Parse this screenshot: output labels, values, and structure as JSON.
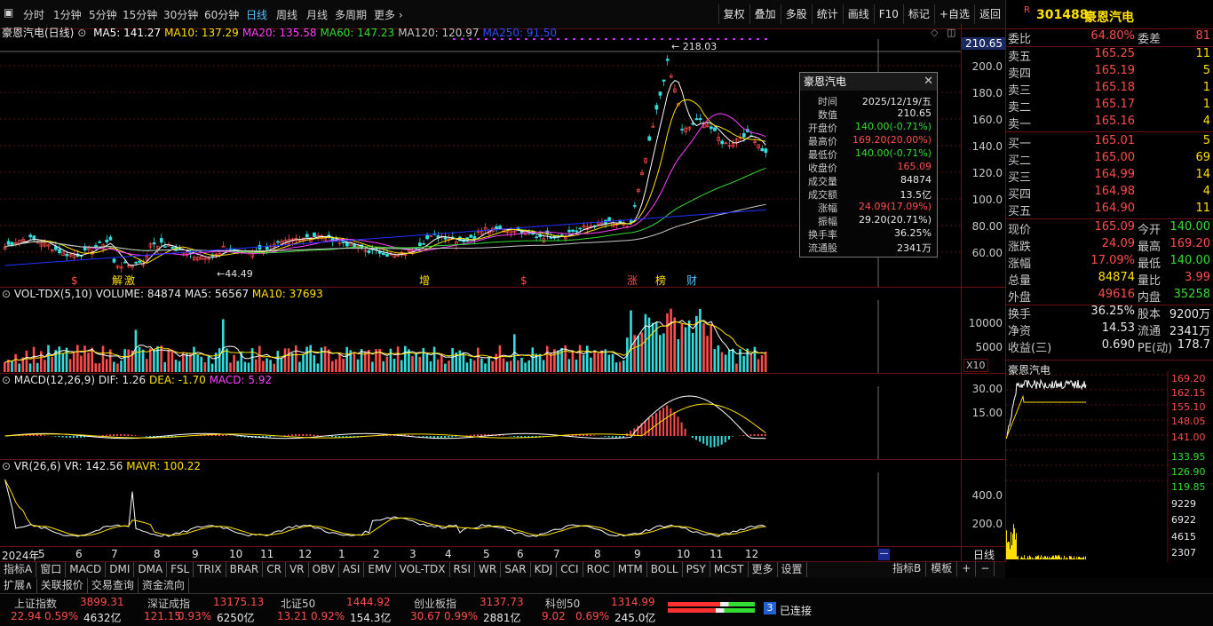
{
  "toolbar": {
    "periods": [
      "分时",
      "1分钟",
      "5分钟",
      "15分钟",
      "30分钟",
      "60分钟",
      "日线",
      "周线",
      "月线",
      "多周期",
      "更多"
    ],
    "active_period": "日线",
    "right_buttons": [
      "复权",
      "叠加",
      "多股",
      "统计",
      "画线",
      "F10",
      "标记",
      "+自选",
      "返回"
    ]
  },
  "main_chart": {
    "stock_title": "豪恩汽电(日线)",
    "ma": [
      {
        "label": "MA5: 141.27",
        "color": "#ffffff"
      },
      {
        "label": "MA10: 137.29",
        "color": "#ffe000"
      },
      {
        "label": "MA20: 135.58",
        "color": "#ff40ff"
      },
      {
        "label": "MA60: 147.23",
        "color": "#33dd33"
      },
      {
        "label": "MA120: 120.97",
        "color": "#c8c8c8"
      },
      {
        "label": "MA250: 91.50",
        "color": "#3050ff"
      }
    ],
    "high_label": "218.03",
    "low_label": "44.49",
    "axis": [
      "200.0",
      "180.0",
      "160.0",
      "140.0",
      "120.0",
      "100.0",
      "80.00",
      "60.00"
    ],
    "crosshair_price": "210.65",
    "event_markers": [
      {
        "text": "$",
        "color": "#ff4c4c"
      },
      {
        "text": "解",
        "color": "#ffe000"
      },
      {
        "text": "激",
        "color": "#ffe000"
      },
      {
        "text": "增",
        "color": "#ffe000"
      },
      {
        "text": "$",
        "color": "#ff4c4c"
      },
      {
        "text": "涨",
        "color": "#ff4c4c"
      },
      {
        "text": "榜",
        "color": "#ffe000"
      },
      {
        "text": "财",
        "color": "#4fc3ff"
      }
    ]
  },
  "vol_panel": {
    "title": "VOL-TDX(5,10)",
    "labels": [
      "VOLUME: 84874",
      "MA5: 56567",
      "MA10: 37693"
    ],
    "axis": [
      "10000",
      "5000"
    ],
    "unit": "X10"
  },
  "macd_panel": {
    "title": "MACD(12,26,9)",
    "labels": [
      "DIF: 1.26",
      "DEA: -1.70",
      "MACD: 5.92"
    ],
    "axis": [
      "30.00",
      "15.00"
    ]
  },
  "vr_panel": {
    "title": "VR(26,6)",
    "labels": [
      "VR: 142.56",
      "MAVR: 100.22"
    ],
    "axis": [
      "400.0",
      "200.0"
    ],
    "period_label": "日线"
  },
  "x_axis": {
    "labels": [
      "2024年",
      "5",
      "6",
      "7",
      "8",
      "9",
      "10",
      "11",
      "12",
      "1",
      "2",
      "3",
      "4",
      "5",
      "6",
      "7",
      "8",
      "9",
      "10",
      "11",
      "12"
    ]
  },
  "popup": {
    "title": "豪恩汽电",
    "rows": [
      {
        "k": "时间",
        "v": "2025/12/19/五",
        "c": "#e8e8e8"
      },
      {
        "k": "数值",
        "v": "210.65",
        "c": "#e8e8e8"
      },
      {
        "k": "开盘价",
        "v": "140.00(-0.71%)",
        "c": "#33dd33"
      },
      {
        "k": "最高价",
        "v": "169.20(20.00%)",
        "c": "#ff4c4c"
      },
      {
        "k": "最低价",
        "v": "140.00(-0.71%)",
        "c": "#33dd33"
      },
      {
        "k": "收盘价",
        "v": "165.09",
        "c": "#ff4c4c"
      },
      {
        "k": "成交量",
        "v": "84874",
        "c": "#e8e8e8"
      },
      {
        "k": "成交额",
        "v": "13.5亿",
        "c": "#e8e8e8"
      },
      {
        "k": "涨幅",
        "v": "24.09(17.09%)",
        "c": "#ff4c4c"
      },
      {
        "k": "振幅",
        "v": "29.20(20.71%)",
        "c": "#e8e8e8"
      },
      {
        "k": "换手率",
        "v": "36.25%",
        "c": "#e8e8e8"
      },
      {
        "k": "流通股",
        "v": "2341万",
        "c": "#e8e8e8"
      }
    ]
  },
  "quote": {
    "badge": "R",
    "code": "301488",
    "name": "豪恩汽电",
    "webi_label": "委比",
    "webi": "64.80%",
    "wecha_label": "委差",
    "wecha": "81",
    "asks": [
      {
        "label": "卖五",
        "price": "165.25",
        "vol": "11"
      },
      {
        "label": "卖四",
        "price": "165.19",
        "vol": "5"
      },
      {
        "label": "卖三",
        "price": "165.18",
        "vol": "1"
      },
      {
        "label": "卖二",
        "price": "165.17",
        "vol": "1"
      },
      {
        "label": "卖一",
        "price": "165.16",
        "vol": "4"
      }
    ],
    "bids": [
      {
        "label": "买一",
        "price": "165.01",
        "vol": "5"
      },
      {
        "label": "买二",
        "price": "165.00",
        "vol": "69"
      },
      {
        "label": "买三",
        "price": "164.99",
        "vol": "14"
      },
      {
        "label": "买四",
        "price": "164.98",
        "vol": "4"
      },
      {
        "label": "买五",
        "price": "164.90",
        "vol": "11"
      }
    ],
    "stats": [
      {
        "l": "现价",
        "v": "165.09",
        "vc": "#ff4c4c",
        "l2": "今开",
        "v2": "140.00",
        "v2c": "#33dd33"
      },
      {
        "l": "涨跌",
        "v": "24.09",
        "vc": "#ff4c4c",
        "l2": "最高",
        "v2": "169.20",
        "v2c": "#ff4c4c"
      },
      {
        "l": "涨幅",
        "v": "17.09%",
        "vc": "#ff4c4c",
        "l2": "最低",
        "v2": "140.00",
        "v2c": "#33dd33"
      },
      {
        "l": "总量",
        "v": "84874",
        "vc": "#ffe000",
        "l2": "量比",
        "v2": "3.99",
        "v2c": "#ff4c4c"
      },
      {
        "l": "外盘",
        "v": "49616",
        "vc": "#ff4c4c",
        "l2": "内盘",
        "v2": "35258",
        "v2c": "#33dd33"
      },
      {
        "l": "换手",
        "v": "36.25%",
        "vc": "#e8e8e8",
        "l2": "股本",
        "v2": "9200万",
        "v2c": "#e8e8e8"
      },
      {
        "l": "净资",
        "v": "14.53",
        "vc": "#e8e8e8",
        "l2": "流通",
        "v2": "2341万",
        "v2c": "#e8e8e8"
      },
      {
        "l": "收益(三)",
        "v": "0.690",
        "vc": "#e8e8e8",
        "l2": "PE(动)",
        "v2": "178.7",
        "v2c": "#e8e8e8"
      }
    ]
  },
  "mini_chart": {
    "title": "豪恩汽电",
    "axis_red": [
      "169.20",
      "162.15",
      "155.10",
      "148.05",
      "141.00"
    ],
    "axis_green": [
      "133.95",
      "126.90",
      "119.85"
    ],
    "vol_axis": [
      "9229",
      "6922",
      "4615",
      "2307"
    ]
  },
  "indicator_tabs": [
    "指标A",
    "窗口",
    "MACD",
    "DMI",
    "DMA",
    "FSL",
    "TRIX",
    "BRAR",
    "CR",
    "VR",
    "OBV",
    "ASI",
    "EMV",
    "VOL-TDX",
    "RSI",
    "WR",
    "SAR",
    "KDJ",
    "CCI",
    "ROC",
    "MTM",
    "BOLL",
    "PSY",
    "MCST",
    "更多",
    "设置"
  ],
  "indicator_right": [
    "指标B",
    "模板",
    "+",
    "−"
  ],
  "sub_tabs": [
    "扩展∧",
    "关联报价",
    "交易查询",
    "资金流向"
  ],
  "indices": [
    {
      "name": "上证指数",
      "val": "3899.31",
      "chg": "22.94",
      "pct": "0.59%",
      "amt": "4632亿"
    },
    {
      "name": "深证成指",
      "val": "13175.13",
      "chg": "121.15",
      "pct": "0.93%",
      "amt": "6250亿"
    },
    {
      "name": "北证50",
      "val": "1444.92",
      "chg": "13.21",
      "pct": "0.92%",
      "amt": "154.3亿"
    },
    {
      "name": "创业板指",
      "val": "3137.73",
      "chg": "30.67",
      "pct": "0.99%",
      "amt": "2881亿"
    },
    {
      "name": "科创50",
      "val": "1314.99",
      "chg": "9.02",
      "pct": "0.69%",
      "amt": "245.0亿"
    }
  ],
  "connection": {
    "num": "3",
    "text": "已连接"
  },
  "colors": {
    "up": "#ff4c4c",
    "down": "#33dd33",
    "grid": "#6a1010",
    "accent": "#4fc3ff"
  }
}
